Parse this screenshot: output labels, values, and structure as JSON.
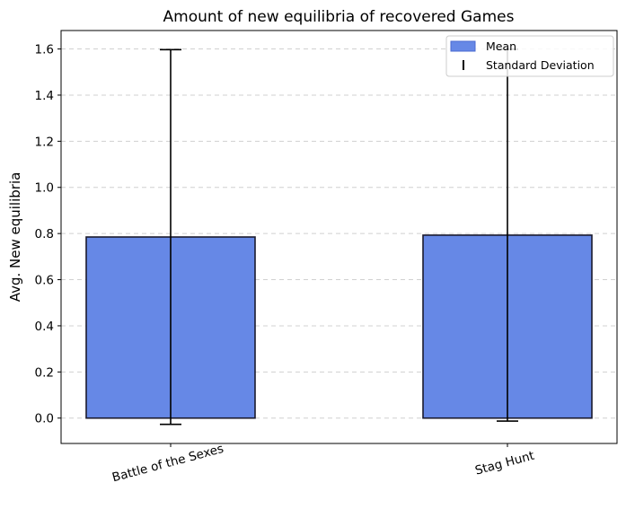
{
  "chart_data": {
    "type": "bar",
    "title": "Amount of new equilibria of recovered Games",
    "xlabel": "",
    "ylabel": "Avg. New equilibria",
    "categories": [
      "Battle of the Sexes",
      "Stag Hunt"
    ],
    "series": [
      {
        "name": "Mean",
        "values": [
          0.785,
          0.793
        ],
        "error": [
          0.812,
          0.806
        ],
        "error_label": "Standard Deviation"
      }
    ],
    "ylim": [
      -0.11,
      1.68
    ],
    "yticks": [
      "0.0",
      "0.2",
      "0.4",
      "0.6",
      "0.8",
      "1.0",
      "1.2",
      "1.4",
      "1.6"
    ],
    "grid": "y-dashed",
    "legend": "top-right",
    "colors": {
      "bar": "#6688e6",
      "bar_edge": "#1a1a2e",
      "error": "#000000",
      "grid": "#d0d0d0"
    }
  }
}
